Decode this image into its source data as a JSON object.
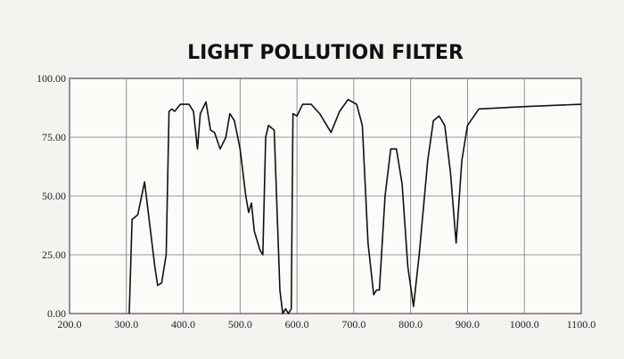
{
  "chart_data": {
    "type": "line",
    "title": "LIGHT POLLUTION FILTER",
    "x": [
      305,
      310,
      320,
      332,
      340,
      350,
      355,
      362,
      370,
      375,
      380,
      385,
      395,
      410,
      418,
      425,
      430,
      440,
      448,
      455,
      465,
      475,
      482,
      490,
      500,
      510,
      515,
      520,
      525,
      535,
      540,
      545,
      550,
      560,
      570,
      575,
      580,
      585,
      590,
      593,
      600,
      610,
      625,
      640,
      660,
      675,
      690,
      705,
      715,
      725,
      735,
      740,
      745,
      755,
      765,
      775,
      785,
      795,
      805,
      815,
      830,
      840,
      850,
      860,
      870,
      880,
      890,
      900,
      920,
      1000,
      1100
    ],
    "series": [
      {
        "color": "#111111",
        "values": [
          0,
          40,
          42,
          56,
          40,
          20,
          12,
          13,
          25,
          86,
          87,
          86,
          89,
          89,
          86,
          70,
          85,
          90,
          78,
          77,
          70,
          75,
          85,
          82,
          70,
          50,
          43,
          47,
          35,
          27,
          25,
          75,
          80,
          78,
          10,
          0,
          2,
          0,
          2,
          85,
          84,
          89,
          89,
          85,
          77,
          86,
          91,
          89,
          80,
          30,
          8,
          10,
          10,
          50,
          70,
          70,
          55,
          20,
          3,
          25,
          65,
          82,
          84,
          80,
          60,
          30,
          65,
          80,
          87,
          88,
          89
        ]
      }
    ],
    "xlim": [
      200,
      1100
    ],
    "ylim": [
      0,
      100
    ],
    "xticks": [
      {
        "value": 200,
        "label": "200.0"
      },
      {
        "value": 300,
        "label": "300.0"
      },
      {
        "value": 400,
        "label": "400.0"
      },
      {
        "value": 500,
        "label": "500.0"
      },
      {
        "value": 600,
        "label": "600.0"
      },
      {
        "value": 700,
        "label": "700.0"
      },
      {
        "value": 800,
        "label": "800.0"
      },
      {
        "value": 900,
        "label": "900.0"
      },
      {
        "value": 1000,
        "label": "1000.0"
      },
      {
        "value": 1100,
        "label": "1100.0"
      }
    ],
    "yticks": [
      {
        "value": 0,
        "label": "0.00"
      },
      {
        "value": 25,
        "label": "25.00"
      },
      {
        "value": 50,
        "label": "50.00"
      },
      {
        "value": 75,
        "label": "75.00"
      },
      {
        "value": 100,
        "label": "100.00"
      }
    ],
    "grid": true
  }
}
